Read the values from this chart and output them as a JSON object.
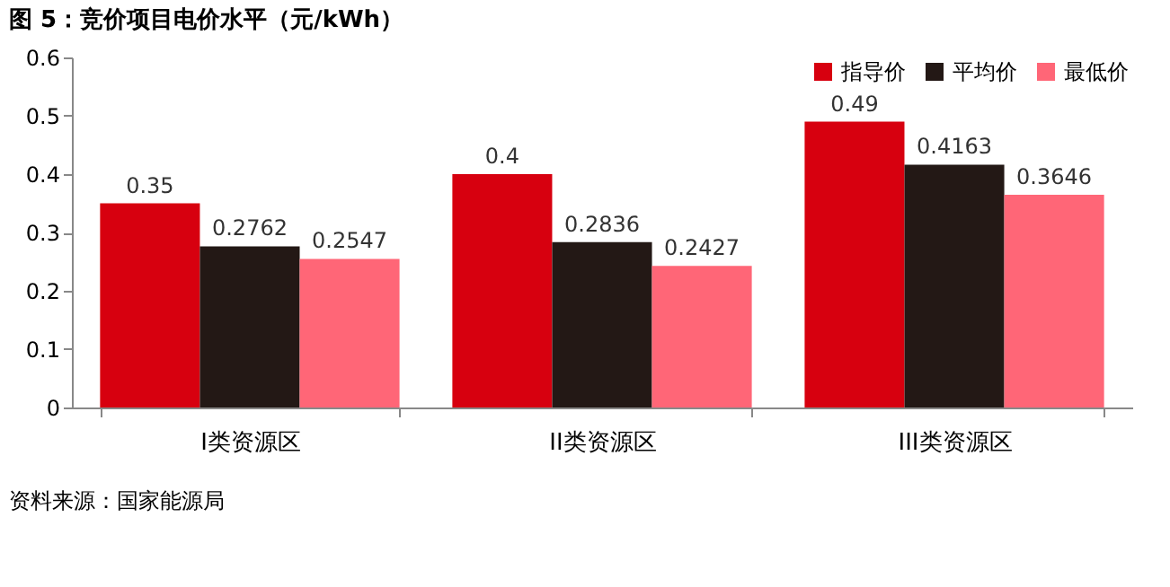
{
  "chart_data": {
    "type": "bar",
    "title": "图 5：竞价项目电价水平（元/kWh）",
    "categories": [
      "I类资源区",
      "II类资源区",
      "III类资源区"
    ],
    "series": [
      {
        "name": "指导价",
        "color": "#d7000f",
        "values": [
          0.35,
          0.4,
          0.49
        ]
      },
      {
        "name": "平均价",
        "color": "#231815",
        "values": [
          0.2762,
          0.2836,
          0.4163
        ]
      },
      {
        "name": "最低价",
        "color": "#ff6677",
        "values": [
          0.2547,
          0.2427,
          0.3646
        ]
      }
    ],
    "ylim": [
      0,
      0.6
    ],
    "yticks": [
      0,
      0.1,
      0.2,
      0.3,
      0.4,
      0.5,
      0.6
    ],
    "data_labels": true,
    "grid": false,
    "legend": "top right",
    "annotations": [
      "资料来源：国家能源局"
    ]
  }
}
